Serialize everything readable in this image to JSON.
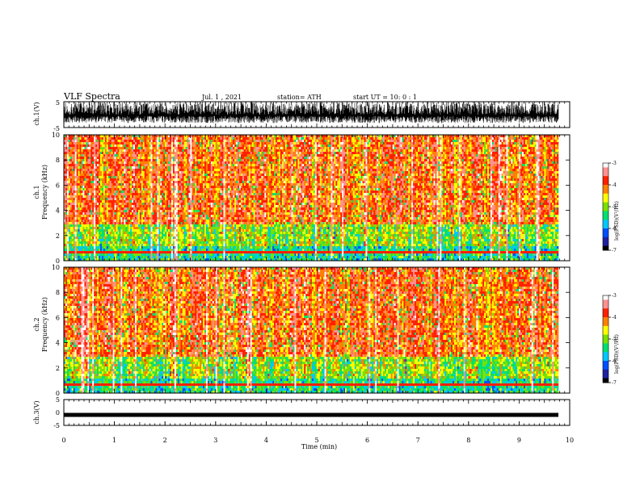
{
  "header": {
    "title": "VLF Spectra",
    "date": "Jul. 1 , 2021",
    "station": "station= ATH",
    "start": "start UT = 10: 0 : 1"
  },
  "chart_data": [
    {
      "type": "line",
      "ylabel": "ch.1(V)",
      "ylim": [
        -5,
        5
      ],
      "yticks": [
        "5",
        "-5"
      ],
      "xlim": [
        0,
        10
      ],
      "description_of_signal": "dense spiky waveform"
    },
    {
      "type": "heatmap",
      "ylabel_1": "ch.1",
      "ylabel_2": "Frequency (kHz)",
      "ylim": [
        0,
        10
      ],
      "yticks": [
        "10",
        "8",
        "6",
        "4",
        "2",
        "0"
      ],
      "xlim": [
        0,
        10
      ],
      "colorbar": {
        "label": "log(PSD)(V²/Hz)",
        "range": [
          -7,
          -3
        ],
        "ticks": [
          "-3",
          "-4",
          "-5",
          "-6",
          "-7"
        ]
      }
    },
    {
      "type": "heatmap",
      "ylabel_1": "ch.2",
      "ylabel_2": "Frequency (kHz)",
      "ylim": [
        0,
        10
      ],
      "yticks": [
        "10",
        "8",
        "6",
        "4",
        "2",
        "0"
      ],
      "xlim": [
        0,
        10
      ],
      "colorbar": {
        "label": "log(PSD)(V²/Hz)",
        "range": [
          -7,
          -3
        ],
        "ticks": [
          "-3",
          "-4",
          "-5",
          "-6",
          "-7"
        ]
      }
    },
    {
      "type": "line",
      "ylabel": "ch.3(V)",
      "ylim": [
        -5,
        5
      ],
      "yticks": [
        "5",
        "0",
        "-5"
      ],
      "xlim": [
        0,
        10
      ],
      "xlabel": "Time (min)",
      "xticks": [
        "0",
        "1",
        "2",
        "3",
        "4",
        "5",
        "6",
        "7",
        "8",
        "9",
        "10"
      ]
    }
  ],
  "colors": {
    "palette": [
      "#000000",
      "#2020a0",
      "#0050ff",
      "#00c8ff",
      "#00e070",
      "#7ae000",
      "#ffff00",
      "#ff8000",
      "#ff2000",
      "#ff9090",
      "#ffffff"
    ]
  }
}
